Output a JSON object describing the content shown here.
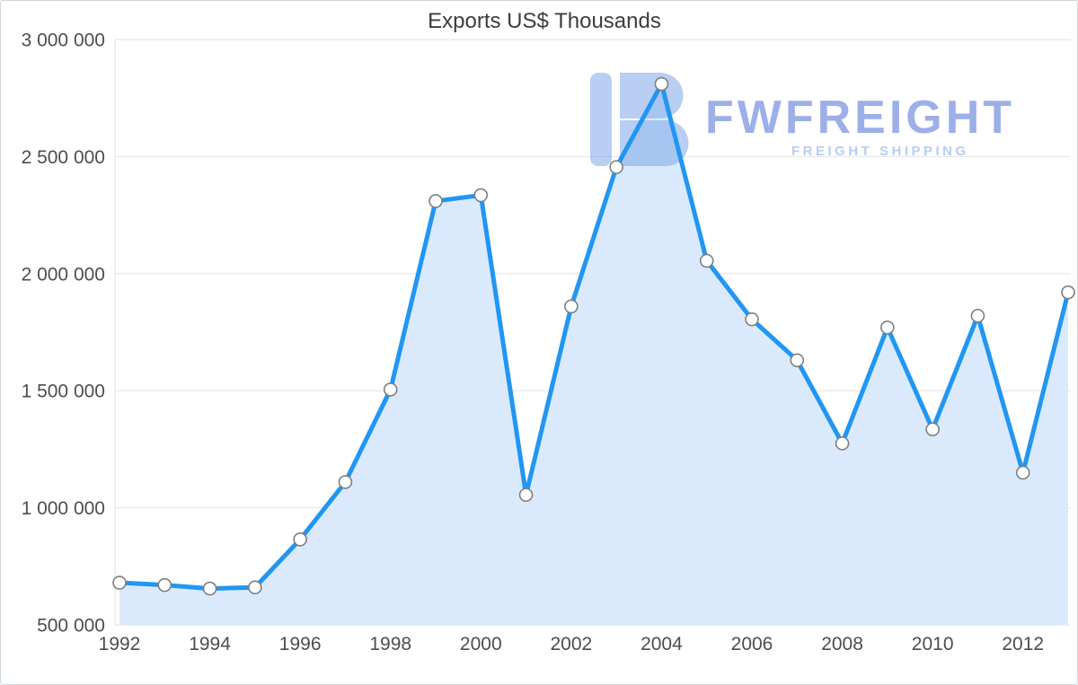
{
  "watermark": {
    "brand": "FWFREIGHT",
    "tagline": "FREIGHT SHIPPING"
  },
  "chart_data": {
    "type": "area",
    "title": "Exports US$ Thousands",
    "xlabel": "",
    "ylabel": "Exports US$ Thousands",
    "x": [
      1992,
      1993,
      1994,
      1995,
      1996,
      1997,
      1998,
      1999,
      2000,
      2001,
      2002,
      2003,
      2004,
      2005,
      2006,
      2007,
      2008,
      2009,
      2010,
      2011,
      2012,
      2013
    ],
    "series": [
      {
        "name": "Exports US$ Thousands",
        "values": [
          680000,
          670000,
          655000,
          660000,
          865000,
          1110000,
          1505000,
          2310000,
          2335000,
          1055000,
          1860000,
          2455000,
          2810000,
          2055000,
          1805000,
          1630000,
          1275000,
          1770000,
          1335000,
          1820000,
          1150000,
          1920000
        ]
      }
    ],
    "ylim": [
      500000,
      3000000
    ],
    "yticks": [
      {
        "value": 500000,
        "label": "500 000"
      },
      {
        "value": 1000000,
        "label": "1 000 000"
      },
      {
        "value": 1500000,
        "label": "1 500 000"
      },
      {
        "value": 2000000,
        "label": "2 000 000"
      },
      {
        "value": 2500000,
        "label": "2 500 000"
      },
      {
        "value": 3000000,
        "label": "3 000 000"
      }
    ],
    "xticks": [
      {
        "value": 1992,
        "label": "1992"
      },
      {
        "value": 1994,
        "label": "1994"
      },
      {
        "value": 1996,
        "label": "1996"
      },
      {
        "value": 1998,
        "label": "1998"
      },
      {
        "value": 2000,
        "label": "2000"
      },
      {
        "value": 2002,
        "label": "2002"
      },
      {
        "value": 2004,
        "label": "2004"
      },
      {
        "value": 2006,
        "label": "2006"
      },
      {
        "value": 2008,
        "label": "2008"
      },
      {
        "value": 2010,
        "label": "2010"
      },
      {
        "value": 2012,
        "label": "2012"
      }
    ],
    "grid": "horizontal",
    "legend": "none",
    "colors": {
      "line": "#2196f3",
      "area": "#daeafc",
      "marker_fill": "#ffffff",
      "marker_stroke": "#7f7f7f",
      "grid": "#e2e2e2",
      "axis_line": "#e2e2e2",
      "axis_text": "#4d4d4d",
      "title_text": "#3d3d3d",
      "watermark_logo": "#7ea6e8",
      "watermark_brand": "#8ba2e6",
      "watermark_tagline": "#a9c6ee"
    }
  }
}
